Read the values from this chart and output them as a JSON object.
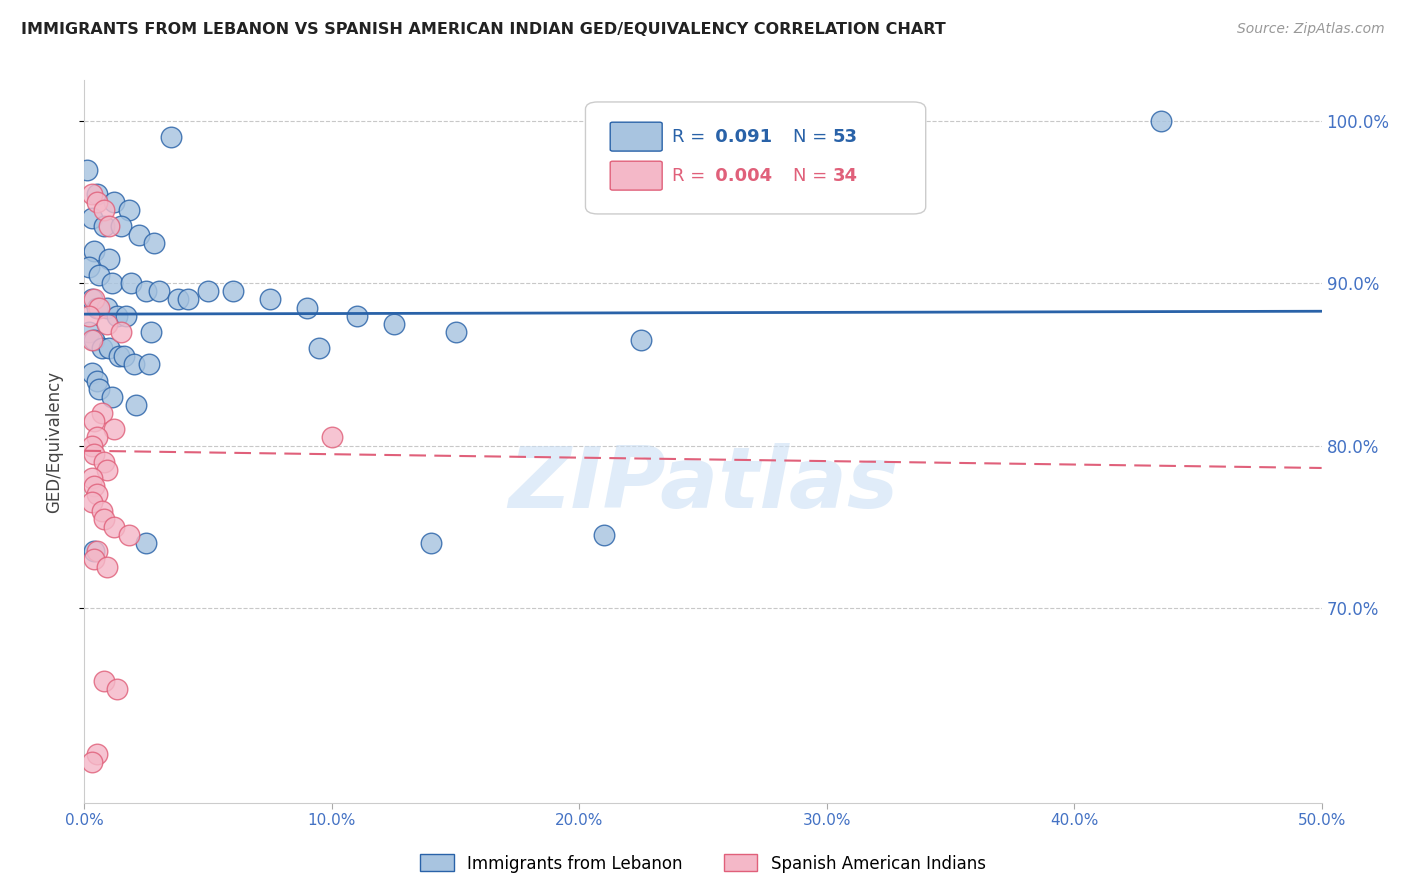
{
  "title": "IMMIGRANTS FROM LEBANON VS SPANISH AMERICAN INDIAN GED/EQUIVALENCY CORRELATION CHART",
  "source": "Source: ZipAtlas.com",
  "ylabel": "GED/Equivalency",
  "legend1_label": "Immigrants from Lebanon",
  "legend2_label": "Spanish American Indians",
  "R1": 0.091,
  "N1": 53,
  "R2": 0.004,
  "N2": 34,
  "blue_color": "#a8c4e0",
  "pink_color": "#f4b8c8",
  "blue_line_color": "#2962a8",
  "pink_line_color": "#e0607a",
  "blue_scatter_x": [
    0.1,
    3.5,
    0.5,
    1.2,
    1.8,
    0.3,
    0.8,
    1.5,
    2.2,
    2.8,
    0.4,
    1.0,
    0.2,
    0.6,
    1.1,
    1.9,
    2.5,
    3.0,
    3.8,
    4.2,
    5.0,
    6.0,
    0.3,
    0.5,
    0.9,
    1.3,
    1.7,
    7.5,
    9.0,
    11.0,
    12.5,
    15.0,
    0.2,
    0.4,
    0.7,
    1.0,
    1.4,
    1.6,
    2.0,
    2.6,
    0.3,
    0.5,
    0.6,
    1.1,
    2.1,
    2.7,
    9.5,
    14.0,
    21.0,
    22.5,
    43.5,
    0.4,
    2.5
  ],
  "blue_scatter_y": [
    97.0,
    99.0,
    95.5,
    95.0,
    94.5,
    94.0,
    93.5,
    93.5,
    93.0,
    92.5,
    92.0,
    91.5,
    91.0,
    90.5,
    90.0,
    90.0,
    89.5,
    89.5,
    89.0,
    89.0,
    89.5,
    89.5,
    89.0,
    88.5,
    88.5,
    88.0,
    88.0,
    89.0,
    88.5,
    88.0,
    87.5,
    87.0,
    87.0,
    86.5,
    86.0,
    86.0,
    85.5,
    85.5,
    85.0,
    85.0,
    84.5,
    84.0,
    83.5,
    83.0,
    82.5,
    87.0,
    86.0,
    74.0,
    74.5,
    86.5,
    100.0,
    73.5,
    74.0
  ],
  "pink_scatter_x": [
    0.3,
    0.5,
    0.8,
    1.0,
    0.4,
    0.6,
    0.2,
    0.9,
    1.5,
    0.3,
    0.7,
    0.4,
    1.2,
    0.5,
    0.3,
    0.4,
    0.8,
    0.9,
    0.3,
    0.4,
    0.5,
    0.3,
    0.7,
    0.8,
    1.2,
    1.8,
    0.5,
    0.4,
    0.9,
    0.8,
    1.3,
    10.0,
    0.5,
    0.3
  ],
  "pink_scatter_y": [
    95.5,
    95.0,
    94.5,
    93.5,
    89.0,
    88.5,
    88.0,
    87.5,
    87.0,
    86.5,
    82.0,
    81.5,
    81.0,
    80.5,
    80.0,
    79.5,
    79.0,
    78.5,
    78.0,
    77.5,
    77.0,
    76.5,
    76.0,
    75.5,
    75.0,
    74.5,
    73.5,
    73.0,
    72.5,
    65.5,
    65.0,
    80.5,
    61.0,
    60.5
  ],
  "xlim": [
    0.0,
    50.0
  ],
  "ylim": [
    58.0,
    102.5
  ],
  "xticks": [
    0.0,
    10.0,
    20.0,
    30.0,
    40.0,
    50.0
  ],
  "yticks": [
    70.0,
    80.0,
    90.0,
    100.0
  ]
}
